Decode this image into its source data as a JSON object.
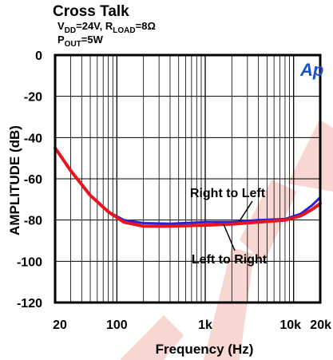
{
  "chart_data": {
    "type": "line",
    "title": "Cross Talk",
    "condition_lines": [
      {
        "parts": [
          [
            "V",
            "DD",
            "=24V, R"
          ],
          [
            "",
            "LOAD",
            "=8Ω"
          ]
        ]
      },
      {
        "parts": [
          [
            "P",
            "OUT",
            "=5W"
          ]
        ]
      }
    ],
    "xlabel": "Frequency (Hz)",
    "ylabel": "AMPLITUDE (dB)",
    "x_scale": "log",
    "xlim": [
      20,
      20000
    ],
    "ylim": [
      -120,
      0
    ],
    "x_ticks": [
      {
        "value": 20,
        "label": "20"
      },
      {
        "value": 100,
        "label": "100"
      },
      {
        "value": 1000,
        "label": "1k"
      },
      {
        "value": 10000,
        "label": "10k"
      },
      {
        "value": 20000,
        "label": "20k"
      }
    ],
    "y_ticks": [
      {
        "value": 0,
        "label": "0"
      },
      {
        "value": -20,
        "label": "-20"
      },
      {
        "value": -40,
        "label": "-40"
      },
      {
        "value": -60,
        "label": "-60"
      },
      {
        "value": -80,
        "label": "-80"
      },
      {
        "value": -100,
        "label": "-100"
      },
      {
        "value": -120,
        "label": "-120"
      }
    ],
    "grid": true,
    "logo": "Ap",
    "series": [
      {
        "name": "Right to Left",
        "color": "#2a1fd6",
        "points": [
          [
            20,
            -45
          ],
          [
            30,
            -56
          ],
          [
            50,
            -68
          ],
          [
            80,
            -76
          ],
          [
            120,
            -80
          ],
          [
            200,
            -81.5
          ],
          [
            400,
            -81.8
          ],
          [
            1000,
            -81
          ],
          [
            2000,
            -81
          ],
          [
            4000,
            -80
          ],
          [
            8000,
            -79.5
          ],
          [
            12000,
            -77
          ],
          [
            16000,
            -73
          ],
          [
            20000,
            -69
          ]
        ]
      },
      {
        "name": "Left to Right",
        "color": "#e8141e",
        "points": [
          [
            20,
            -45
          ],
          [
            30,
            -56
          ],
          [
            50,
            -68
          ],
          [
            80,
            -76
          ],
          [
            120,
            -81
          ],
          [
            200,
            -83
          ],
          [
            400,
            -83
          ],
          [
            1000,
            -82.5
          ],
          [
            2000,
            -82
          ],
          [
            4000,
            -81
          ],
          [
            8000,
            -80
          ],
          [
            12000,
            -78
          ],
          [
            16000,
            -75
          ],
          [
            20000,
            -72
          ]
        ]
      }
    ]
  }
}
